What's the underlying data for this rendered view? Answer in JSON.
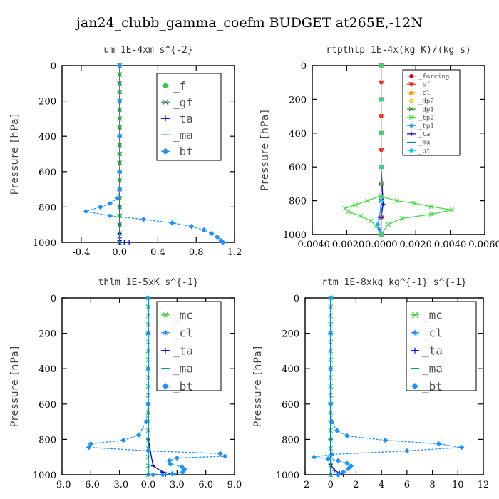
{
  "figure_title": "jan24_clubb_gamma_coefm  BUDGET at265E,-12N",
  "chart_data": [
    {
      "type": "line",
      "title": "um  1E-4xm s^{-2}",
      "ylabel": "Pressure [hPa]",
      "xlim": [
        -0.6,
        1.2
      ],
      "ylim": [
        0,
        1000
      ],
      "y_inverted": true,
      "xticks": [
        -0.4,
        0,
        0.4,
        0.8,
        1.2
      ],
      "xtick_labels": [
        "-0.4",
        "0.0",
        "0.4",
        "0.8",
        "1.2"
      ],
      "yticks": [
        0,
        200,
        400,
        600,
        800,
        1000
      ],
      "ytick_labels": [
        "0",
        "200",
        "400",
        "600",
        "800",
        "1000"
      ],
      "legend_position": "top-right",
      "series": [
        {
          "name": "_f",
          "color": "#33cc33",
          "marker": "circle",
          "x": [
            0,
            0,
            0,
            0,
            0,
            0,
            0,
            0,
            0,
            0,
            0,
            0,
            0,
            0,
            0,
            0,
            0,
            0,
            0,
            0,
            0
          ],
          "y": [
            0,
            50,
            100,
            150,
            200,
            250,
            300,
            350,
            400,
            450,
            500,
            550,
            600,
            650,
            700,
            750,
            800,
            850,
            900,
            950,
            1000
          ]
        },
        {
          "name": "_gf",
          "color": "#2e8b6e",
          "marker": "x",
          "x": [
            0,
            0,
            0,
            0,
            0,
            0,
            0,
            0,
            0,
            0,
            0,
            0,
            0,
            0,
            0,
            0,
            0,
            0,
            0,
            0,
            0
          ],
          "y": [
            0,
            50,
            100,
            150,
            200,
            250,
            300,
            350,
            400,
            450,
            500,
            550,
            600,
            650,
            700,
            750,
            800,
            850,
            900,
            950,
            1000
          ]
        },
        {
          "name": "_ta",
          "color": "#0000cc",
          "marker": "plus",
          "x": [
            0,
            0,
            0,
            0,
            0,
            0,
            0,
            0,
            0,
            0,
            0.05,
            0.1
          ],
          "y": [
            0,
            200,
            400,
            600,
            800,
            900,
            950,
            975,
            990,
            1000,
            1000,
            1000
          ]
        },
        {
          "name": "_ma",
          "color": "#008b8b",
          "marker": "dash",
          "x": [
            0,
            0,
            0,
            0,
            0,
            0
          ],
          "y": [
            0,
            200,
            400,
            600,
            800,
            1000
          ]
        },
        {
          "name": "_bt",
          "color": "#1e90ff",
          "marker": "diamond",
          "dashed": true,
          "x": [
            0,
            0,
            0,
            0,
            0,
            -0.02,
            -0.1,
            -0.2,
            -0.35,
            -0.1,
            0.25,
            0.55,
            0.75,
            0.88,
            0.96,
            1.02,
            1.06,
            1.08
          ],
          "y": [
            0,
            200,
            400,
            600,
            700,
            750,
            780,
            800,
            825,
            850,
            870,
            890,
            910,
            930,
            950,
            970,
            990,
            1000
          ]
        }
      ]
    },
    {
      "type": "line",
      "title": "rtpthlp  1E-4x(kg K)/(kg s)",
      "ylabel": "Pressure [hPa]",
      "xlim": [
        -0.004,
        0.006
      ],
      "ylim": [
        0,
        1000
      ],
      "y_inverted": true,
      "xticks": [
        -0.004,
        -0.002,
        0,
        0.002,
        0.004,
        0.006
      ],
      "xtick_labels": [
        "-0.0040",
        "-0.0020",
        "0.0000",
        "0.0020",
        "0.0040",
        "0.0060"
      ],
      "yticks": [
        0,
        200,
        400,
        600,
        800,
        1000
      ],
      "ytick_labels": [
        "0",
        "200",
        "400",
        "600",
        "800",
        "1000"
      ],
      "legend_position": "top-right",
      "series": [
        {
          "name": "_forcing",
          "color": "#cc0000",
          "marker": "circle",
          "x": [
            0,
            0,
            0,
            0,
            0,
            0,
            0,
            0,
            0,
            0,
            0
          ],
          "y": [
            0,
            100,
            200,
            300,
            400,
            500,
            600,
            700,
            800,
            900,
            1000
          ]
        },
        {
          "name": "_sf",
          "color": "#ff2222",
          "marker": "triangle-down",
          "x": [
            0,
            0,
            0,
            0,
            0,
            0,
            0,
            0,
            0,
            0,
            0
          ],
          "y": [
            0,
            100,
            200,
            300,
            400,
            500,
            600,
            700,
            800,
            900,
            1000
          ]
        },
        {
          "name": "_cl",
          "color": "#ff9900",
          "marker": "triangle",
          "x": [
            0,
            0,
            0,
            0,
            0,
            0
          ],
          "y": [
            0,
            200,
            400,
            600,
            800,
            1000
          ]
        },
        {
          "name": "_dp2",
          "color": "#e6c200",
          "marker": "circle-open",
          "x": [
            0,
            0,
            0,
            0,
            0,
            0
          ],
          "y": [
            0,
            200,
            400,
            600,
            800,
            1000
          ]
        },
        {
          "name": "_dp1",
          "color": "#228b22",
          "marker": "x",
          "x": [
            0,
            0,
            0,
            0,
            0,
            0
          ],
          "y": [
            0,
            200,
            400,
            600,
            800,
            1000
          ]
        },
        {
          "name": "_tp2",
          "color": "#44dd44",
          "marker": "x",
          "x": [
            0,
            0,
            0,
            0,
            0,
            0,
            -0.0008,
            -0.0015,
            -0.0021,
            -0.0019,
            -0.0012,
            -0.0006,
            -0.0003,
            0
          ],
          "y": [
            0,
            200,
            400,
            600,
            700,
            770,
            800,
            825,
            845,
            865,
            890,
            920,
            950,
            1000
          ]
        },
        {
          "name": "_tp1",
          "color": "#3399ff",
          "marker": "star",
          "x": [
            0,
            0,
            0,
            0,
            0,
            -0.0001,
            -0.0002,
            -0.0001,
            0
          ],
          "y": [
            0,
            200,
            400,
            600,
            800,
            900,
            940,
            970,
            1000
          ]
        },
        {
          "name": "_ta",
          "color": "#0000cc",
          "marker": "plus",
          "x": [
            0,
            0,
            0,
            0,
            0.0001,
            0,
            0
          ],
          "y": [
            0,
            200,
            400,
            600,
            820,
            900,
            1000
          ]
        },
        {
          "name": "_ma",
          "color": "#008b8b",
          "marker": "dash",
          "x": [
            0,
            0,
            0,
            0,
            0,
            0
          ],
          "y": [
            0,
            200,
            400,
            600,
            800,
            1000
          ]
        },
        {
          "name": "_bt",
          "color": "#00ccff",
          "marker": "diamond",
          "x": [
            0,
            0,
            0,
            0,
            0,
            0
          ],
          "y": [
            0,
            200,
            400,
            600,
            800,
            1000
          ]
        },
        {
          "name": "",
          "color": "#44dd44",
          "marker": "x",
          "x": [
            0,
            0,
            0,
            0,
            0,
            0,
            0.0009,
            0.0019,
            0.0029,
            0.0041,
            0.0029,
            0.0012,
            0.0004,
            0
          ],
          "y": [
            0,
            200,
            400,
            600,
            700,
            775,
            800,
            815,
            835,
            855,
            880,
            905,
            940,
            1000
          ]
        }
      ]
    },
    {
      "type": "line",
      "title": "thlm  1E-5xK s^{-1}",
      "ylabel": "Pressure [hPa]",
      "xlim": [
        -9,
        9
      ],
      "ylim": [
        0,
        1000
      ],
      "y_inverted": true,
      "xticks": [
        -9,
        -6,
        -3,
        0,
        3,
        6,
        9
      ],
      "xtick_labels": [
        "-9.0",
        "-6.0",
        "-3.0",
        "0.0",
        "3.0",
        "6.0",
        "9.0"
      ],
      "yticks": [
        0,
        200,
        400,
        600,
        800,
        1000
      ],
      "ytick_labels": [
        "0",
        "200",
        "400",
        "600",
        "800",
        "1000"
      ],
      "legend_position": "top-right",
      "series": [
        {
          "name": "_mc",
          "color": "#33cc33",
          "marker": "x",
          "x": [
            0,
            0,
            0,
            0,
            0,
            0,
            0,
            0,
            0,
            0,
            0,
            0,
            0,
            0,
            0,
            0,
            0,
            0,
            0,
            0,
            0
          ],
          "y": [
            0,
            50,
            100,
            150,
            200,
            250,
            300,
            350,
            400,
            450,
            500,
            550,
            600,
            650,
            700,
            750,
            800,
            850,
            900,
            950,
            1000
          ]
        },
        {
          "name": "_cl",
          "color": "#1e90ff",
          "marker": "star",
          "x": [
            0,
            0,
            0,
            0,
            0,
            0
          ],
          "y": [
            0,
            200,
            400,
            600,
            800,
            1000
          ]
        },
        {
          "name": "_ta",
          "color": "#0000cc",
          "marker": "plus",
          "x": [
            0,
            0,
            0,
            0,
            0,
            0.5,
            1.5,
            2.5,
            1.8
          ],
          "y": [
            0,
            200,
            400,
            600,
            800,
            950,
            985,
            995,
            1000
          ]
        },
        {
          "name": "_ma",
          "color": "#008b8b",
          "marker": "dash",
          "x": [
            0,
            0,
            0,
            0,
            0,
            0
          ],
          "y": [
            0,
            200,
            400,
            600,
            800,
            1000
          ]
        },
        {
          "name": "_bt",
          "color": "#1e90ff",
          "marker": "diamond",
          "dashed": true,
          "x": [
            0,
            0,
            0,
            0,
            -0.2,
            -1,
            -2.6,
            -6,
            -6.2,
            0,
            7.5,
            8,
            3,
            2.2,
            2.3,
            3.5,
            3.8,
            3.6,
            2.5,
            1.5,
            0.5
          ],
          "y": [
            0,
            200,
            400,
            600,
            700,
            775,
            805,
            825,
            845,
            865,
            880,
            895,
            905,
            920,
            940,
            955,
            970,
            985,
            995,
            1000,
            1000
          ]
        }
      ]
    },
    {
      "type": "line",
      "title": "rtm  1E-8xkg kg^{-1} s^{-1}",
      "ylabel": "Pressure [hPa]",
      "xlim": [
        -2,
        12
      ],
      "ylim": [
        0,
        1000
      ],
      "y_inverted": true,
      "xticks": [
        -2,
        0,
        2,
        4,
        6,
        8,
        10,
        12
      ],
      "xtick_labels": [
        "-2",
        "0",
        "2",
        "4",
        "6",
        "8",
        "10",
        "12"
      ],
      "yticks": [
        0,
        200,
        400,
        600,
        800,
        1000
      ],
      "ytick_labels": [
        "0",
        "200",
        "400",
        "600",
        "800",
        "1000"
      ],
      "legend_position": "top-right",
      "series": [
        {
          "name": "_mc",
          "color": "#33cc33",
          "marker": "x",
          "x": [
            0,
            0,
            0,
            0,
            0,
            0,
            0,
            0,
            0,
            0,
            0,
            0,
            0,
            0,
            0,
            0,
            0,
            0,
            0,
            0,
            0
          ],
          "y": [
            0,
            50,
            100,
            150,
            200,
            250,
            300,
            350,
            400,
            450,
            500,
            550,
            600,
            650,
            700,
            750,
            800,
            850,
            900,
            950,
            1000
          ]
        },
        {
          "name": "_cl",
          "color": "#1e90ff",
          "marker": "star",
          "x": [
            0,
            0,
            0,
            0,
            0,
            0
          ],
          "y": [
            0,
            200,
            400,
            600,
            800,
            1000
          ]
        },
        {
          "name": "_ta",
          "color": "#0000cc",
          "marker": "plus",
          "x": [
            0,
            0,
            0,
            0,
            0,
            0,
            0.3,
            0.7,
            1.0
          ],
          "y": [
            0,
            200,
            400,
            600,
            800,
            940,
            975,
            990,
            1000
          ]
        },
        {
          "name": "_ma",
          "color": "#008b8b",
          "marker": "dash",
          "x": [
            0,
            0,
            0,
            0,
            0,
            0
          ],
          "y": [
            0,
            200,
            400,
            600,
            800,
            1000
          ]
        },
        {
          "name": "_bt",
          "color": "#1e90ff",
          "marker": "diamond",
          "dashed": true,
          "x": [
            0,
            0,
            0,
            0,
            0.1,
            0.5,
            1.3,
            4.3,
            8.5,
            10.3,
            6,
            0.1,
            -1.3,
            -0.2,
            0.6,
            1.3,
            1.6,
            1.4,
            1.0,
            0.6
          ],
          "y": [
            0,
            200,
            400,
            600,
            700,
            750,
            780,
            805,
            825,
            845,
            865,
            885,
            900,
            910,
            920,
            935,
            950,
            965,
            985,
            1000
          ]
        }
      ]
    }
  ]
}
